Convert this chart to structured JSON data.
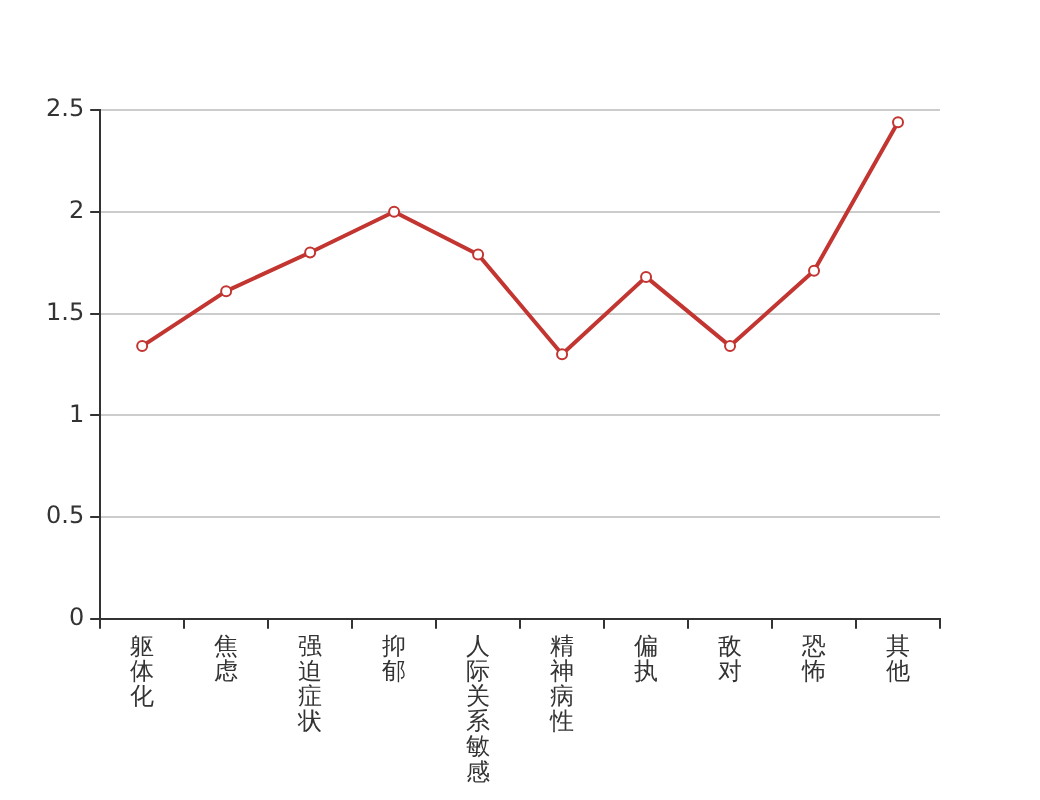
{
  "chart_data": {
    "type": "line",
    "categories": [
      "躯体化",
      "焦虑",
      "强迫症状",
      "抑郁",
      "人际关系敏感",
      "精神病性",
      "偏执",
      "敌对",
      "恐怖",
      "其他"
    ],
    "series": [
      {
        "color": "#c23531",
        "values": [
          1.34,
          1.61,
          1.8,
          2.0,
          1.79,
          1.3,
          1.68,
          1.34,
          1.71,
          2.44
        ]
      }
    ],
    "ylim": [
      0,
      2.5
    ],
    "yticks": [
      0,
      0.5,
      1,
      1.5,
      2,
      2.5
    ],
    "grid": "y",
    "marker": "circle",
    "line_style": "solid",
    "legend": false
  }
}
